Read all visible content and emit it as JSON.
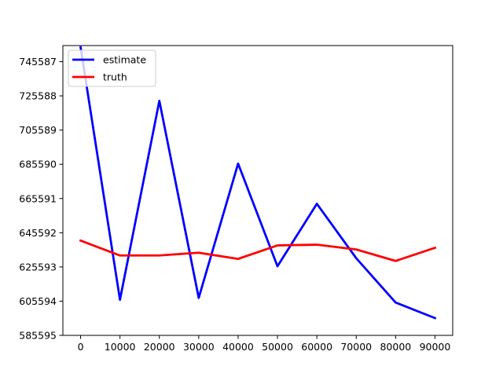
{
  "chart_data": {
    "type": "line",
    "title": "",
    "xlabel": "",
    "ylabel": "",
    "x": [
      0,
      10000,
      20000,
      30000,
      40000,
      50000,
      60000,
      70000,
      80000,
      90000
    ],
    "xlim": [
      -4500,
      94500
    ],
    "ylim": [
      585595,
      755000
    ],
    "x_ticks": [
      0,
      10000,
      20000,
      30000,
      40000,
      50000,
      60000,
      70000,
      80000,
      90000
    ],
    "y_ticks": [
      585595,
      605594,
      625593,
      645592,
      665591,
      685590,
      705589,
      725588,
      745587
    ],
    "legend_position": "top-left",
    "grid": false,
    "series": [
      {
        "name": "estimate",
        "color": "#0000ff",
        "values": [
          754000,
          606400,
          722700,
          607500,
          686000,
          626000,
          662500,
          630700,
          604800,
          595700
        ]
      },
      {
        "name": "truth",
        "color": "#ff0000",
        "values": [
          641000,
          632300,
          632300,
          633900,
          630300,
          638200,
          638600,
          635800,
          629100,
          636800
        ]
      }
    ]
  }
}
